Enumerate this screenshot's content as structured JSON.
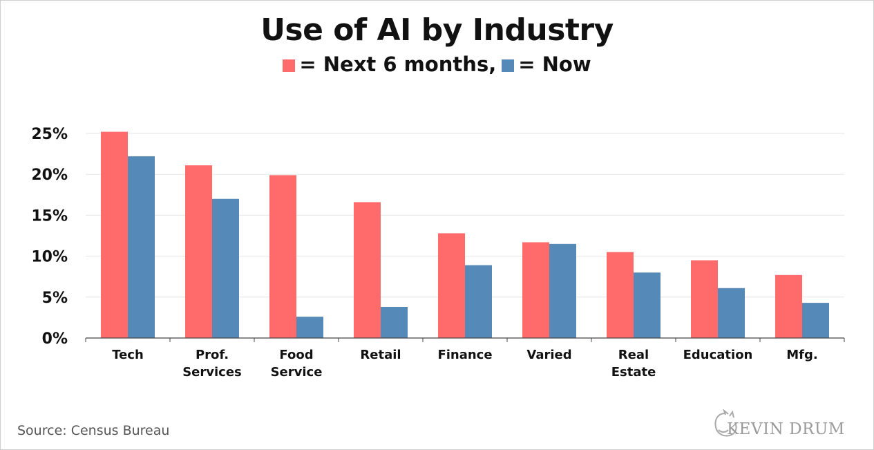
{
  "colors": {
    "next6": "#ff6b6b",
    "now": "#5589b8",
    "grid": "#e6e6e6",
    "axis": "#444444"
  },
  "title": "Use of AI by Industry",
  "legend": {
    "next_label": "= Next 6 months,",
    "now_label": "= Now"
  },
  "source": "Source: Census Bureau",
  "brand": "KEVIN DRUM",
  "chart_data": {
    "type": "bar",
    "title": "Use of AI by Industry",
    "xlabel": "",
    "ylabel": "",
    "ylim": [
      0,
      25
    ],
    "yticks": [
      "0%",
      "5%",
      "10%",
      "15%",
      "20%",
      "25%"
    ],
    "ytick_values": [
      0,
      5,
      10,
      15,
      20,
      25
    ],
    "grid": true,
    "categories": [
      [
        "Tech"
      ],
      [
        "Prof.",
        "Services"
      ],
      [
        "Food",
        "Service"
      ],
      [
        "Retail"
      ],
      [
        "Finance"
      ],
      [
        "Varied"
      ],
      [
        "Real",
        "Estate"
      ],
      [
        "Education"
      ],
      [
        "Mfg."
      ]
    ],
    "series": [
      {
        "name": "Next 6 months",
        "values": [
          25.2,
          21.1,
          19.9,
          16.6,
          12.8,
          11.7,
          10.5,
          9.5,
          7.7
        ]
      },
      {
        "name": "Now",
        "values": [
          22.2,
          17.0,
          2.6,
          3.8,
          8.9,
          11.5,
          8.0,
          6.1,
          4.3
        ]
      }
    ]
  }
}
